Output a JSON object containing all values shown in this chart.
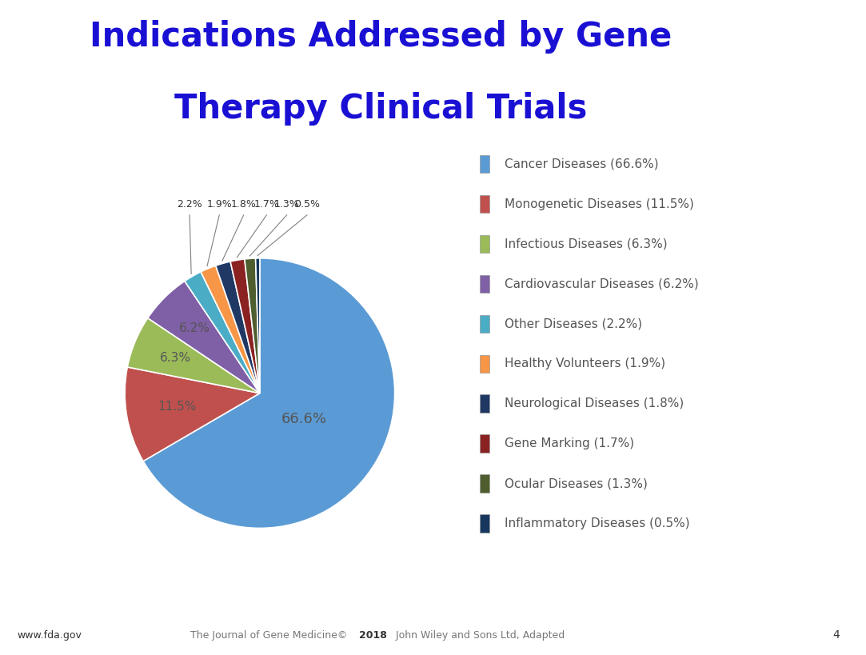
{
  "title_line1": "Indications Addressed by Gene",
  "title_line2": "Therapy Clinical Trials",
  "title_color": "#1a10d4",
  "slices": [
    {
      "label": "Cancer Diseases (66.6%)",
      "value": 66.6,
      "color": "#5B9BD5",
      "pct_label": "66.6%",
      "pct_inside": true,
      "pct_r": 0.38
    },
    {
      "label": "Monogenetic Diseases (11.5%)",
      "value": 11.5,
      "color": "#C0504D",
      "pct_label": "11.5%",
      "pct_inside": true,
      "pct_r": 0.62
    },
    {
      "label": "Infectious Diseases (6.3%)",
      "value": 6.3,
      "color": "#9BBB59",
      "pct_label": "6.3%",
      "pct_inside": true,
      "pct_r": 0.68
    },
    {
      "label": "Cardiovascular Diseases (6.2%)",
      "value": 6.2,
      "color": "#7F5FA6",
      "pct_label": "6.2%",
      "pct_inside": true,
      "pct_r": 0.68
    },
    {
      "label": "Other Diseases (2.2%)",
      "value": 2.2,
      "color": "#4BACC6",
      "pct_label": "2.2%",
      "pct_inside": false,
      "pct_r": 1.0
    },
    {
      "label": "Healthy Volunteers (1.9%)",
      "value": 1.9,
      "color": "#F79646",
      "pct_label": "1.9%",
      "pct_inside": false,
      "pct_r": 1.0
    },
    {
      "label": "Neurological Diseases (1.8%)",
      "value": 1.8,
      "color": "#1F3864",
      "pct_label": "1.8%",
      "pct_inside": false,
      "pct_r": 1.0
    },
    {
      "label": "Gene Marking (1.7%)",
      "value": 1.7,
      "color": "#8B2222",
      "pct_label": "1.7%",
      "pct_inside": false,
      "pct_r": 1.0
    },
    {
      "label": "Ocular Diseases (1.3%)",
      "value": 1.3,
      "color": "#4E5E2E",
      "pct_label": "1.3%",
      "pct_inside": false,
      "pct_r": 1.0
    },
    {
      "label": "Inflammatory Diseases (0.5%)",
      "value": 0.5,
      "color": "#17375E",
      "pct_label": "0.5%",
      "pct_inside": false,
      "pct_r": 1.0
    }
  ],
  "website": "www.fda.gov",
  "page_num": "4",
  "footnote_normal": "The Journal of Gene Medicine© ",
  "footnote_bold": "2018",
  "footnote_normal2": " John Wiley and Sons Ltd, Adapted",
  "background_color": "#ffffff",
  "fda_box_color": "#29ABE2",
  "fda_text_color": "#ffffff"
}
